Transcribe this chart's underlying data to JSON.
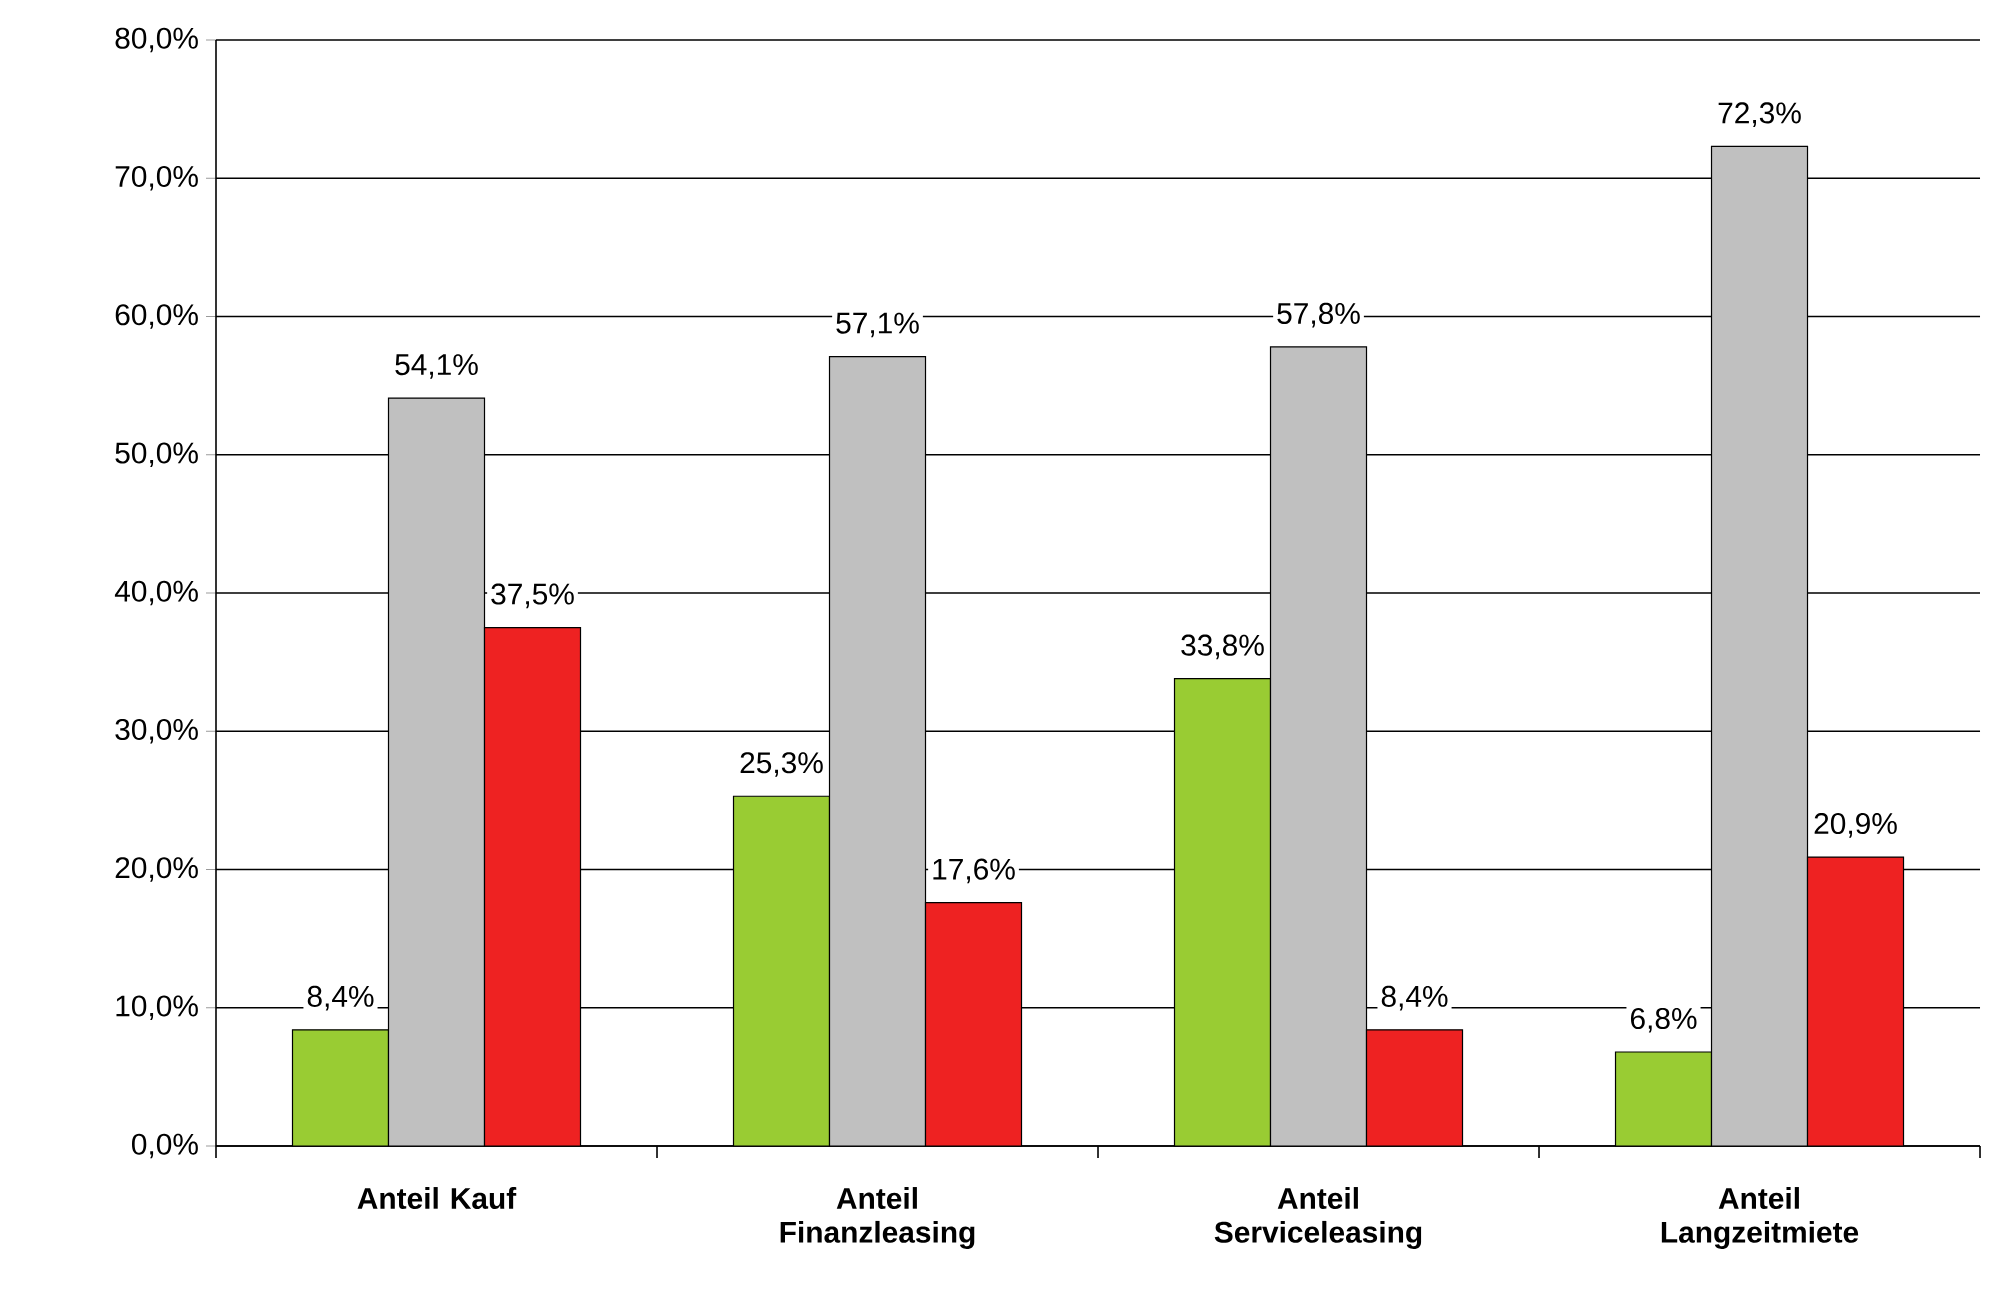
{
  "chart_data": {
    "type": "bar",
    "categories": [
      "Anteil Kauf",
      "Anteil Finanzleasing",
      "Anteil Serviceleasing",
      "Anteil Langzeitmiete"
    ],
    "series": [
      {
        "color": "#99cc33",
        "values": [
          8.4,
          25.3,
          33.8,
          6.8
        ],
        "value_labels": [
          "8,4%",
          "25,3%",
          "33,8%",
          "6,8%"
        ]
      },
      {
        "color": "#c0c0c0",
        "values": [
          54.1,
          57.1,
          57.8,
          72.3
        ],
        "value_labels": [
          "54,1%",
          "57,1%",
          "57,8%",
          "72,3%"
        ]
      },
      {
        "color": "#ee2222",
        "values": [
          37.5,
          17.6,
          8.4,
          20.9
        ],
        "value_labels": [
          "37,5%",
          "17,6%",
          "8,4%",
          "20,9%"
        ]
      }
    ],
    "ylim": [
      0,
      80
    ],
    "yticks": [
      {
        "value": 0,
        "label": "0,0%"
      },
      {
        "value": 10,
        "label": "10,0%"
      },
      {
        "value": 20,
        "label": "20,0%"
      },
      {
        "value": 30,
        "label": "30,0%"
      },
      {
        "value": 40,
        "label": "40,0%"
      },
      {
        "value": 50,
        "label": "50,0%"
      },
      {
        "value": 60,
        "label": "60,0%"
      },
      {
        "value": 70,
        "label": "70,0%"
      },
      {
        "value": 80,
        "label": "80,0%"
      }
    ],
    "grid": "y"
  }
}
